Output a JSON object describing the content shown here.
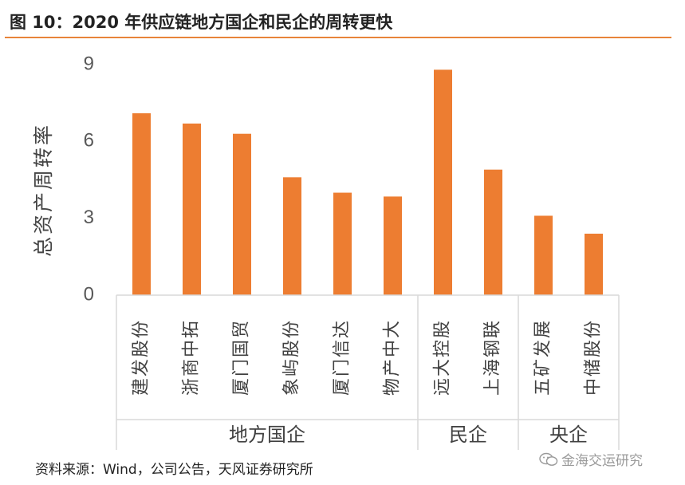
{
  "header": {
    "title": "图 10：2020 年供应链地方国企和民企的周转更快"
  },
  "chart_data": {
    "type": "bar",
    "title": "",
    "ylabel": "总资产周转率",
    "xlabel": "",
    "ylim": [
      0,
      9
    ],
    "yticks": [
      0,
      3,
      6,
      9
    ],
    "categories": [
      "建发股份",
      "浙商中拓",
      "厦门国贸",
      "象屿股份",
      "厦门信达",
      "物产中大",
      "远大控股",
      "上海钢联",
      "五矿发展",
      "中储股份"
    ],
    "values": [
      7.1,
      6.7,
      6.3,
      4.6,
      4.0,
      3.85,
      8.8,
      4.9,
      3.1,
      2.4
    ],
    "groups": [
      {
        "name": "地方国企",
        "count": 6
      },
      {
        "name": "民企",
        "count": 2
      },
      {
        "name": "央企",
        "count": 2
      }
    ],
    "bar_color": "#ed7d31"
  },
  "footer": {
    "source": "资料来源：Wind，公司公告，天风证券研究所",
    "watermark": "金海交运研究"
  },
  "colors": {
    "accent": "#e8843a",
    "bar": "#ed7d31",
    "axis": "#d9d9d9"
  }
}
